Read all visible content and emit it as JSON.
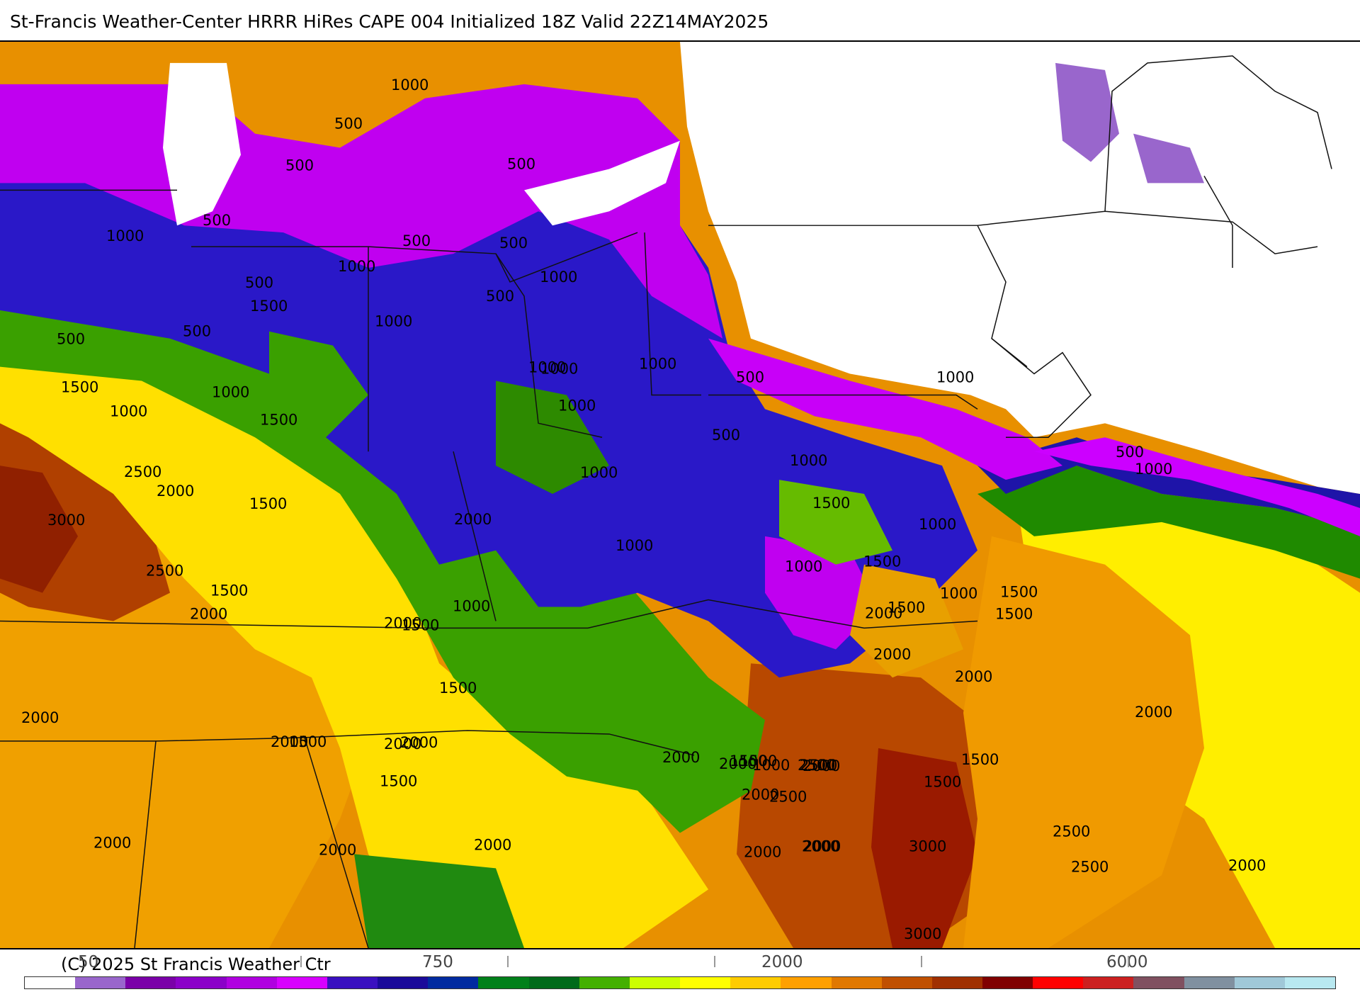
{
  "title": "St-Francis Weather-Center HRRR HiRes CAPE  004 Initialized  18Z Valid 22Z14MAY2025",
  "copyright": "(C) 2025 St Francis Weather Ctr",
  "colorbar": {
    "colors": [
      "#ffffff",
      "#9966cc",
      "#7a00a8",
      "#8b00c8",
      "#b000e0",
      "#d800ff",
      "#3a10c0",
      "#1a0a9a",
      "#002aa0",
      "#00801a",
      "#006a1a",
      "#44b000",
      "#ccff00",
      "#ffff00",
      "#ffcc00",
      "#ffa000",
      "#e07800",
      "#c05000",
      "#a03000",
      "#800000",
      "#ff0000",
      "#cc2020",
      "#805060",
      "#8090a0",
      "#a0c8d8",
      "#b8e8f0"
    ],
    "tick_labels": [
      "50",
      "750",
      "2000",
      "6000"
    ]
  },
  "contour_labels": [
    "1000",
    "500",
    "500",
    "500",
    "500",
    "1000",
    "500",
    "500",
    "1000",
    "500",
    "1500",
    "500",
    "500",
    "1000",
    "500",
    "1000",
    "500",
    "1000",
    "1500",
    "1000",
    "1000",
    "1000",
    "1500",
    "1000",
    "500",
    "1000",
    "500",
    "1000",
    "1000",
    "1000",
    "1000",
    "2500",
    "2000",
    "1500",
    "3000",
    "1500",
    "1000",
    "1000",
    "1500",
    "1000",
    "2500",
    "1500",
    "2000",
    "2000",
    "1500",
    "1000",
    "1500",
    "1500",
    "2000",
    "1000",
    "1500",
    "2000",
    "2000",
    "1500",
    "2000",
    "2000",
    "1500",
    "2000",
    "2000",
    "2000",
    "2000",
    "2000",
    "2000",
    "1500",
    "2500",
    "2500",
    "1500",
    "2500",
    "2000",
    "2000",
    "2500",
    "1500",
    "2500",
    "2000",
    "2000",
    "1500",
    "3000",
    "2000",
    "2000",
    "2000",
    "2000",
    "1500",
    "2000",
    "1000",
    "3000"
  ]
}
